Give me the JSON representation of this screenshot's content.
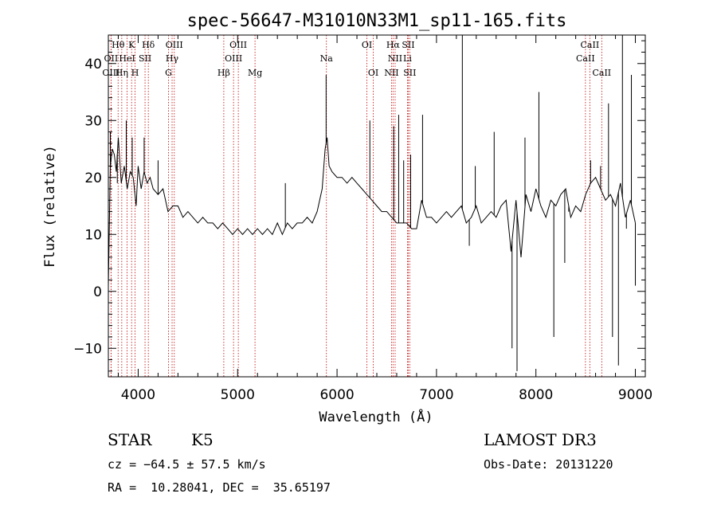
{
  "chart_data": {
    "type": "line",
    "title": "spec-56647-M31010N33M1_sp11-165.fits",
    "xlabel": "Wavelength (Å)",
    "ylabel": "Flux (relative)",
    "xlim": [
      3700,
      9100
    ],
    "ylim": [
      -15,
      45
    ],
    "xticks": [
      4000,
      5000,
      6000,
      7000,
      8000,
      9000
    ],
    "yticks": [
      -10,
      0,
      10,
      20,
      30,
      40
    ],
    "spectrum": {
      "name": "flux",
      "x": [
        3700,
        3720,
        3740,
        3760,
        3780,
        3800,
        3830,
        3860,
        3890,
        3920,
        3950,
        3980,
        4000,
        4030,
        4060,
        4090,
        4120,
        4150,
        4200,
        4250,
        4300,
        4350,
        4400,
        4450,
        4500,
        4550,
        4600,
        4650,
        4700,
        4750,
        4800,
        4850,
        4900,
        4950,
        5000,
        5050,
        5100,
        5150,
        5200,
        5250,
        5300,
        5350,
        5400,
        5450,
        5500,
        5550,
        5600,
        5650,
        5700,
        5750,
        5800,
        5850,
        5880,
        5900,
        5920,
        5950,
        6000,
        6050,
        6100,
        6150,
        6200,
        6250,
        6300,
        6350,
        6400,
        6450,
        6500,
        6550,
        6600,
        6650,
        6700,
        6750,
        6800,
        6850,
        6900,
        6950,
        7000,
        7050,
        7100,
        7150,
        7200,
        7250,
        7300,
        7350,
        7400,
        7450,
        7500,
        7550,
        7600,
        7650,
        7700,
        7750,
        7800,
        7850,
        7900,
        7950,
        8000,
        8050,
        8100,
        8150,
        8200,
        8250,
        8300,
        8350,
        8400,
        8450,
        8500,
        8550,
        8600,
        8650,
        8700,
        8750,
        8800,
        8850,
        8900,
        8950,
        9000
      ],
      "y": [
        1,
        22,
        25,
        24,
        21,
        27,
        19,
        22,
        18,
        21,
        20,
        15,
        22,
        18,
        21,
        19,
        20,
        18,
        17,
        18,
        14,
        15,
        15,
        13,
        14,
        13,
        12,
        13,
        12,
        12,
        11,
        12,
        11,
        10,
        11,
        10,
        11,
        10,
        11,
        10,
        11,
        10,
        12,
        10,
        12,
        11,
        12,
        12,
        13,
        12,
        14,
        18,
        25,
        27,
        22,
        21,
        20,
        20,
        19,
        20,
        19,
        18,
        17,
        16,
        15,
        14,
        14,
        13,
        12,
        12,
        12,
        11,
        11,
        16,
        13,
        13,
        12,
        13,
        14,
        13,
        14,
        15,
        12,
        13,
        15,
        12,
        13,
        14,
        13,
        15,
        16,
        7,
        16,
        6,
        17,
        14,
        18,
        15,
        13,
        16,
        15,
        17,
        18,
        13,
        15,
        14,
        17,
        19,
        20,
        18,
        16,
        17,
        15,
        19,
        13,
        16,
        12
      ]
    },
    "spikes": [
      {
        "x": 3720,
        "y": 28
      },
      {
        "x": 3790,
        "y": 19
      },
      {
        "x": 3880,
        "y": 30
      },
      {
        "x": 3940,
        "y": 27
      },
      {
        "x": 4060,
        "y": 27
      },
      {
        "x": 4200,
        "y": 23
      },
      {
        "x": 5480,
        "y": 19
      },
      {
        "x": 5890,
        "y": 38
      },
      {
        "x": 6330,
        "y": 30
      },
      {
        "x": 6570,
        "y": 29
      },
      {
        "x": 6620,
        "y": 31
      },
      {
        "x": 6670,
        "y": 23
      },
      {
        "x": 6740,
        "y": 24
      },
      {
        "x": 6860,
        "y": 31
      },
      {
        "x": 7260,
        "y": 45
      },
      {
        "x": 7330,
        "y": 8
      },
      {
        "x": 7390,
        "y": 22
      },
      {
        "x": 7580,
        "y": 28
      },
      {
        "x": 7760,
        "y": -10
      },
      {
        "x": 7810,
        "y": -14
      },
      {
        "x": 7890,
        "y": 27
      },
      {
        "x": 8030,
        "y": 35
      },
      {
        "x": 8180,
        "y": -8
      },
      {
        "x": 8290,
        "y": 5
      },
      {
        "x": 8330,
        "y": 14
      },
      {
        "x": 8550,
        "y": 23
      },
      {
        "x": 8650,
        "y": 22
      },
      {
        "x": 8730,
        "y": 33
      },
      {
        "x": 8770,
        "y": -8
      },
      {
        "x": 8830,
        "y": -13
      },
      {
        "x": 8870,
        "y": 45
      },
      {
        "x": 8910,
        "y": 11
      },
      {
        "x": 8960,
        "y": 38
      },
      {
        "x": 9000,
        "y": 1
      }
    ],
    "spectral_lines": [
      {
        "label": "Hθ",
        "x": 3798,
        "row": 0
      },
      {
        "label": "OII",
        "x": 3727,
        "row": 1
      },
      {
        "label": "OIII",
        "x": 3727,
        "row": 2
      },
      {
        "label": "K",
        "x": 3934,
        "row": 0
      },
      {
        "label": "HeI",
        "x": 3889,
        "row": 1
      },
      {
        "label": "Hη",
        "x": 3835,
        "row": 2
      },
      {
        "label": "Hδ",
        "x": 4102,
        "row": 0
      },
      {
        "label": "SII",
        "x": 4069,
        "row": 1
      },
      {
        "label": "H",
        "x": 3969,
        "row": 2
      },
      {
        "label": "OIII",
        "x": 4363,
        "row": 0
      },
      {
        "label": "Hγ",
        "x": 4341,
        "row": 1
      },
      {
        "label": "G",
        "x": 4305,
        "row": 2
      },
      {
        "label": "OIII",
        "x": 5007,
        "row": 0
      },
      {
        "label": "OIII",
        "x": 4959,
        "row": 1
      },
      {
        "label": "Hβ",
        "x": 4861,
        "row": 2
      },
      {
        "label": "Mg",
        "x": 5175,
        "row": 2
      },
      {
        "label": "Na",
        "x": 5893,
        "row": 1
      },
      {
        "label": "OI",
        "x": 6300,
        "row": 0
      },
      {
        "label": "OI",
        "x": 6364,
        "row": 2
      },
      {
        "label": "Hα",
        "x": 6563,
        "row": 0
      },
      {
        "label": "SII",
        "x": 6716,
        "row": 0
      },
      {
        "label": "NII",
        "x": 6584,
        "row": 1
      },
      {
        "label": "Li",
        "x": 6708,
        "row": 1
      },
      {
        "label": "NII",
        "x": 6548,
        "row": 2
      },
      {
        "label": "SII",
        "x": 6731,
        "row": 2
      },
      {
        "label": "CaII",
        "x": 8542,
        "row": 0
      },
      {
        "label": "CaII",
        "x": 8498,
        "row": 1
      },
      {
        "label": "CaII",
        "x": 8662,
        "row": 2
      }
    ]
  },
  "info": {
    "class_label": "STAR",
    "subclass": "K5",
    "survey": "LAMOST DR3",
    "redshift_line": "cz = −64.5 ± 57.5 km/s",
    "obs_date_line": "Obs-Date: 20131220",
    "coords_line": "RA =  10.28041, DEC =  35.65197"
  },
  "colors": {
    "line_marker": "#c00000",
    "spectrum": "#000000",
    "axis": "#000000"
  }
}
